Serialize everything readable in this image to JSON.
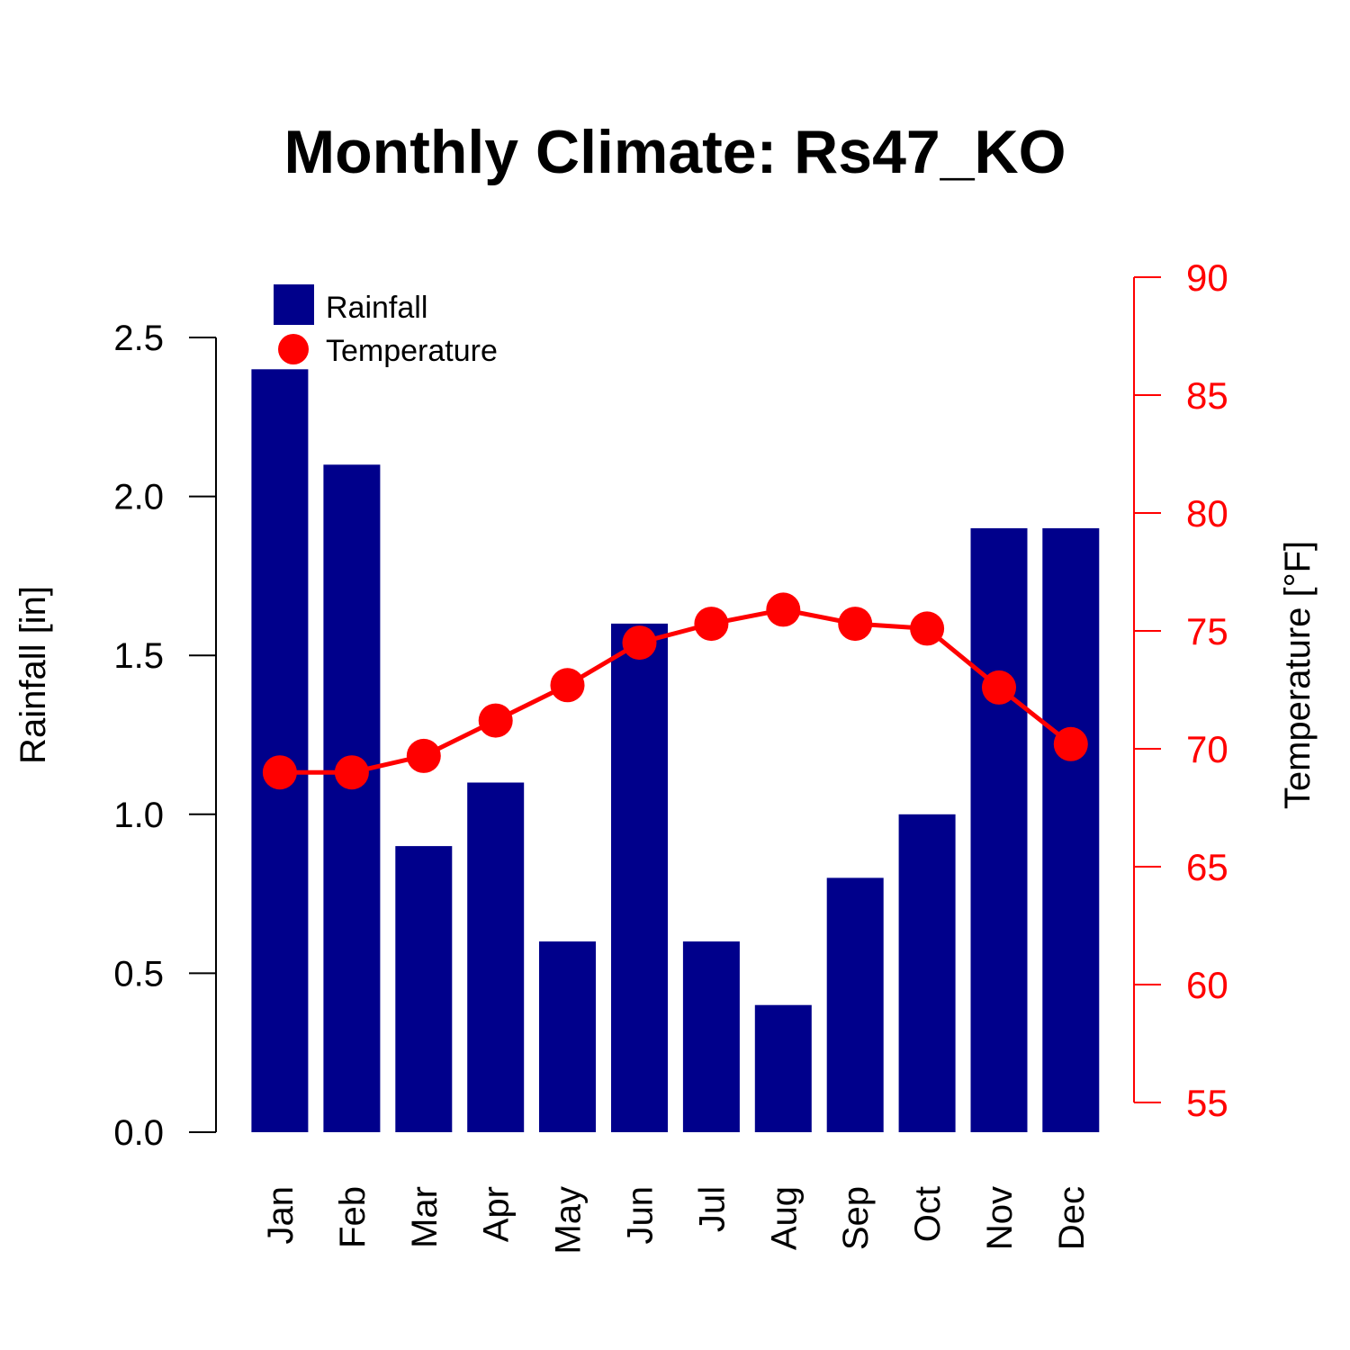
{
  "chart_data": {
    "type": "bar",
    "title": "Monthly Climate: Rs47_KO",
    "categories": [
      "Jan",
      "Feb",
      "Mar",
      "Apr",
      "May",
      "Jun",
      "Jul",
      "Aug",
      "Sep",
      "Oct",
      "Nov",
      "Dec"
    ],
    "series": [
      {
        "name": "Rainfall",
        "type": "bar",
        "axis": "left",
        "color": "#00008B",
        "values": [
          2.4,
          2.1,
          0.9,
          1.1,
          0.6,
          1.6,
          0.6,
          0.4,
          0.8,
          1.0,
          1.9,
          1.9
        ]
      },
      {
        "name": "Temperature",
        "type": "line",
        "axis": "right",
        "color": "#FF0000",
        "values": [
          69.0,
          69.0,
          69.7,
          71.2,
          72.7,
          74.5,
          75.3,
          75.9,
          75.3,
          75.1,
          72.6,
          70.2
        ]
      }
    ],
    "ylabel": "Rainfall [in]",
    "ylim": [
      0,
      2.5
    ],
    "yticks": [
      "0.0",
      "0.5",
      "1.0",
      "1.5",
      "2.0",
      "2.5"
    ],
    "y2label": "Temperature [°F]",
    "y2lim": [
      55,
      90
    ],
    "y2ticks": [
      "55",
      "60",
      "65",
      "70",
      "75",
      "80",
      "85",
      "90"
    ],
    "legend_position": "top-left",
    "grid": false
  }
}
